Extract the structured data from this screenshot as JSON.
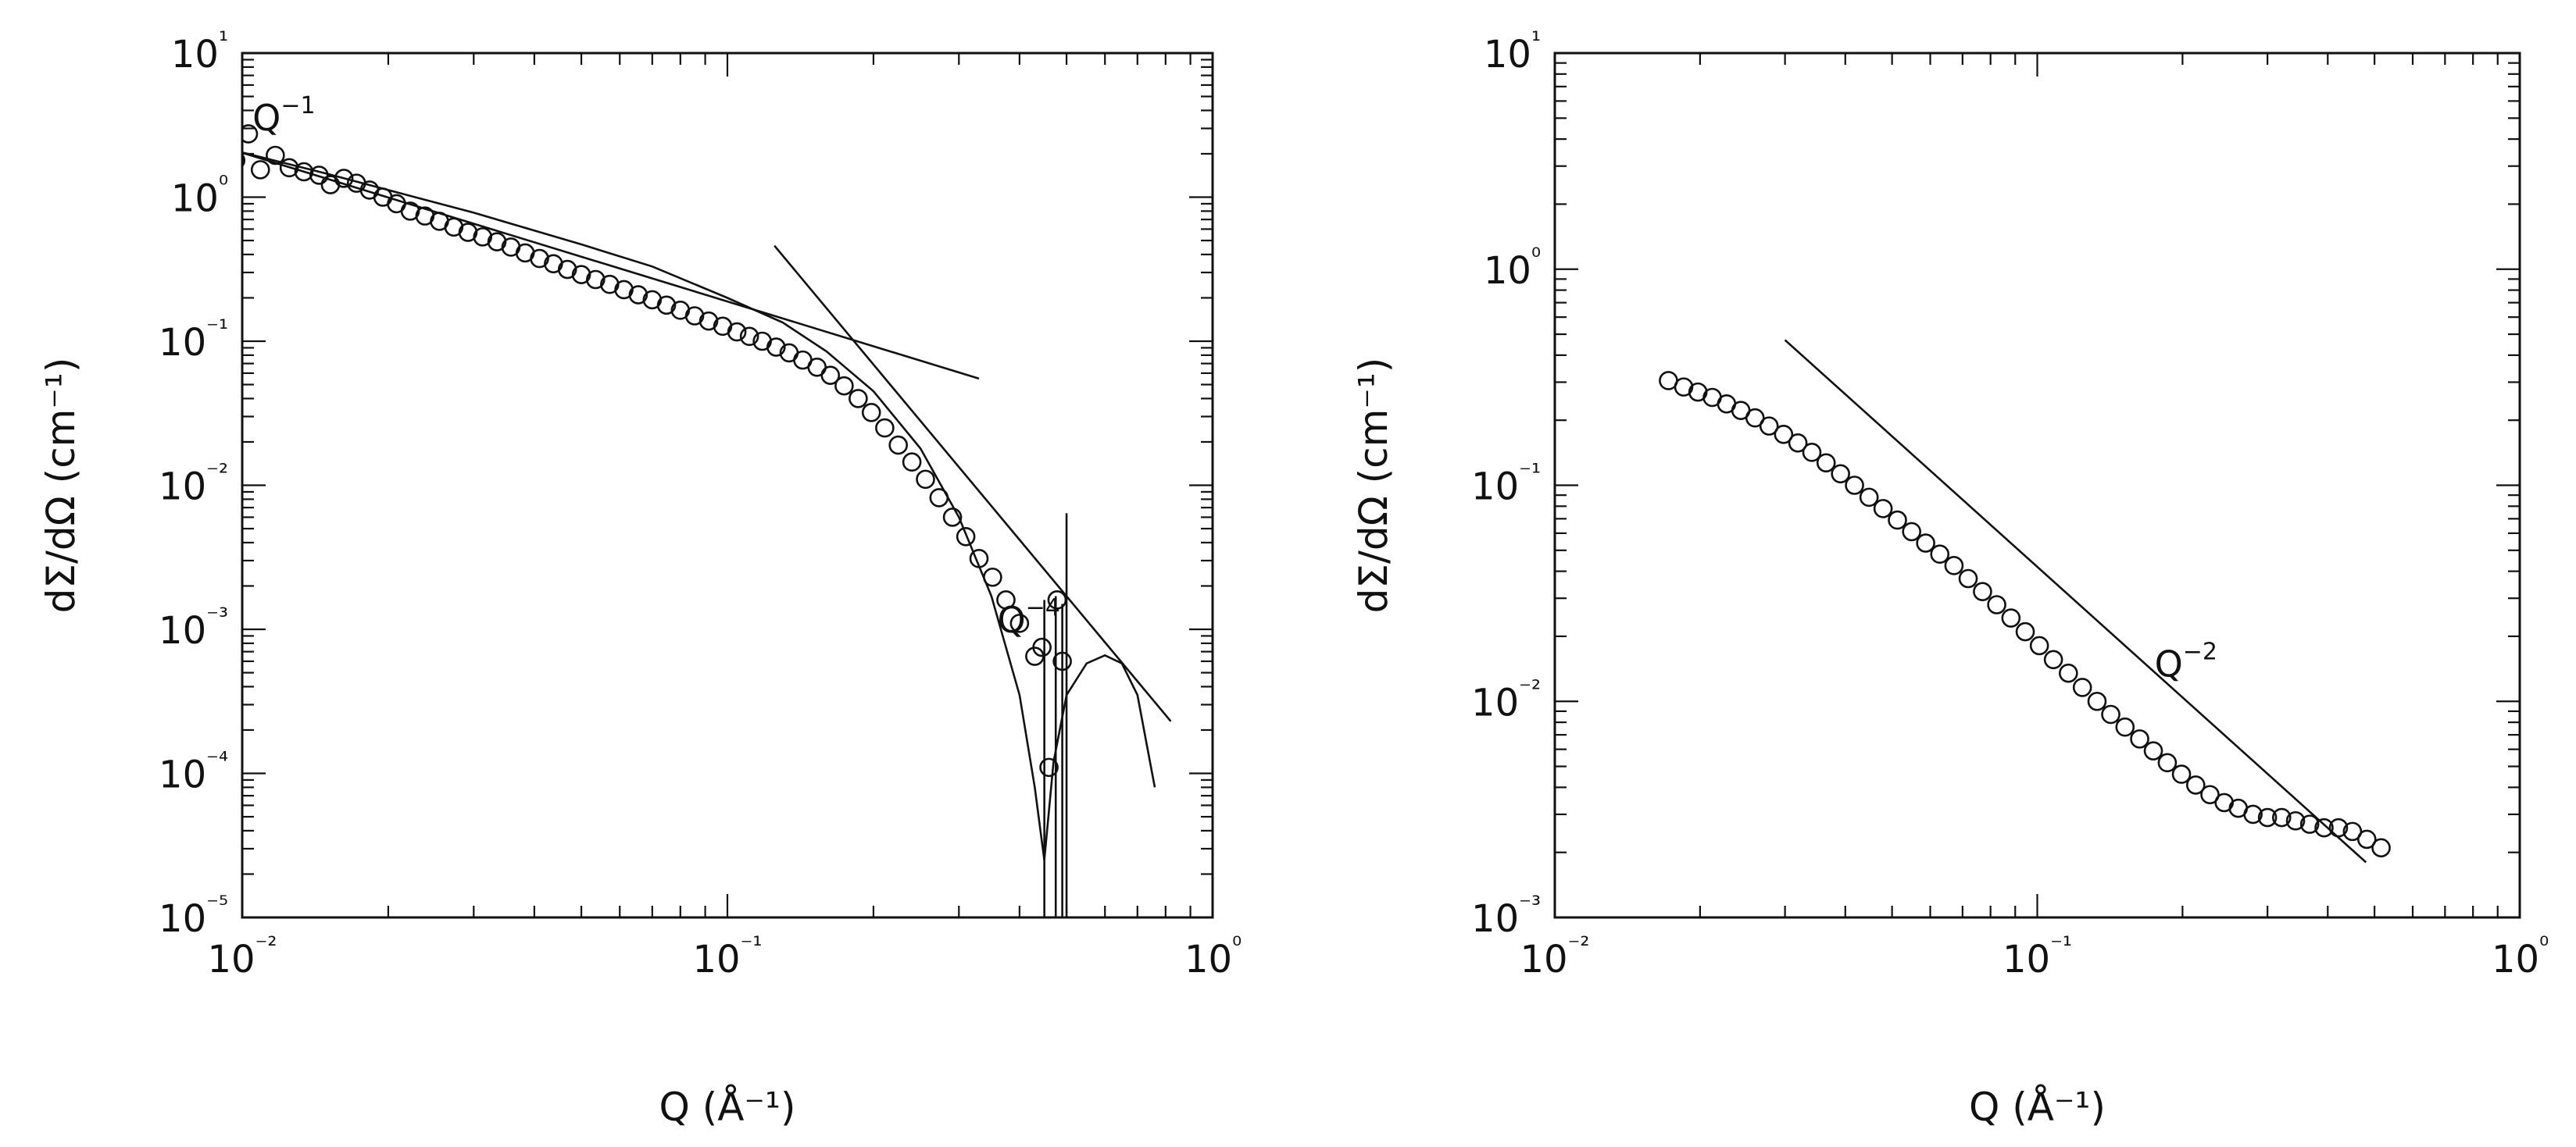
{
  "chart_data": [
    {
      "type": "scatter",
      "xscale": "log",
      "yscale": "log",
      "xlim": [
        0.01,
        1
      ],
      "ylim": [
        1e-05,
        10
      ],
      "xlabel": "Q (Å⁻¹)",
      "ylabel": "dΣ/dΩ (cm⁻¹)",
      "x_ticks": [
        0.01,
        0.1,
        1
      ],
      "y_ticks": [
        1e-05,
        0.0001,
        0.001,
        0.01,
        0.1,
        1,
        10
      ],
      "grid": false,
      "annotations": [
        {
          "base": "Q",
          "exp": "−1",
          "x": 0.0105,
          "y": 2.9
        },
        {
          "base": "Q",
          "exp": "−4",
          "x": 0.36,
          "y": 0.00095
        }
      ],
      "series": [
        {
          "marker": "circle",
          "x": [
            0.0097,
            0.0103,
            0.0109,
            0.0117,
            0.0125,
            0.0134,
            0.0144,
            0.0152,
            0.0162,
            0.0172,
            0.0183,
            0.0195,
            0.0208,
            0.0222,
            0.0238,
            0.0255,
            0.0273,
            0.0292,
            0.0313,
            0.0335,
            0.0358,
            0.0383,
            0.041,
            0.0438,
            0.0468,
            0.05,
            0.0535,
            0.0572,
            0.0612,
            0.0655,
            0.07,
            0.0749,
            0.08,
            0.0856,
            0.0915,
            0.0978,
            0.1046,
            0.111,
            0.118,
            0.126,
            0.134,
            0.143,
            0.153,
            0.163,
            0.174,
            0.186,
            0.198,
            0.211,
            0.225,
            0.24,
            0.256,
            0.273,
            0.291,
            0.31,
            0.33,
            0.352,
            0.375,
            0.4,
            0.43,
            0.445,
            0.46,
            0.478,
            0.49
          ],
          "y": [
            1.8,
            2.75,
            1.55,
            1.95,
            1.6,
            1.5,
            1.42,
            1.22,
            1.35,
            1.25,
            1.12,
            1.0,
            0.9,
            0.8,
            0.74,
            0.68,
            0.62,
            0.57,
            0.53,
            0.49,
            0.45,
            0.41,
            0.375,
            0.345,
            0.315,
            0.29,
            0.268,
            0.248,
            0.228,
            0.21,
            0.194,
            0.178,
            0.164,
            0.15,
            0.138,
            0.127,
            0.116,
            0.108,
            0.1,
            0.091,
            0.083,
            0.074,
            0.066,
            0.058,
            0.049,
            0.04,
            0.032,
            0.025,
            0.019,
            0.0145,
            0.011,
            0.0082,
            0.006,
            0.0044,
            0.0031,
            0.0023,
            0.0016,
            0.0011,
            0.00065,
            0.00075,
            0.00011,
            0.0016,
            0.0006
          ]
        },
        {
          "name": "",
          "style": "line",
          "x": [
            0.0097,
            0.33
          ],
          "y": [
            2.1,
            0.055
          ]
        },
        {
          "name": "",
          "style": "line",
          "x": [
            0.125,
            0.82
          ],
          "y": [
            0.46,
            0.00023
          ]
        },
        {
          "name": "",
          "style": "line",
          "x": [
            0.0097,
            0.015,
            0.02,
            0.03,
            0.05,
            0.07,
            0.1,
            0.13,
            0.16,
            0.2,
            0.25,
            0.3,
            0.35,
            0.4,
            0.43,
            0.45,
            0.47,
            0.5,
            0.55,
            0.6,
            0.65,
            0.7,
            0.76
          ],
          "y": [
            2.1,
            1.45,
            1.12,
            0.78,
            0.47,
            0.33,
            0.2,
            0.135,
            0.085,
            0.045,
            0.018,
            0.006,
            0.0017,
            0.00035,
            8e-05,
            2.5e-05,
            0.00012,
            0.00035,
            0.00058,
            0.00066,
            0.00058,
            0.00035,
            8e-05
          ]
        },
        {
          "name": "",
          "style": "error-bars",
          "x": [
            0.45,
            0.475,
            0.49,
            0.5
          ],
          "y_low": [
            1e-05,
            1e-05,
            1e-05,
            1e-05
          ],
          "y_high": [
            0.0016,
            0.0017,
            0.0015,
            0.0064
          ]
        }
      ]
    },
    {
      "type": "scatter",
      "xscale": "log",
      "yscale": "log",
      "xlim": [
        0.01,
        1
      ],
      "ylim": [
        0.001,
        10
      ],
      "xlabel": "Q (Å⁻¹)",
      "ylabel": "dΣ/dΩ (cm⁻¹)",
      "x_ticks": [
        0.01,
        0.1,
        1
      ],
      "y_ticks": [
        0.001,
        0.01,
        0.1,
        1,
        10
      ],
      "grid": false,
      "annotations": [
        {
          "base": "Q",
          "exp": "−2",
          "x": 0.175,
          "y": 0.013
        }
      ],
      "series": [
        {
          "marker": "circle",
          "x": [
            0.0172,
            0.0185,
            0.0198,
            0.0212,
            0.0227,
            0.0243,
            0.026,
            0.0278,
            0.0298,
            0.0319,
            0.0341,
            0.0365,
            0.0391,
            0.0418,
            0.0448,
            0.0479,
            0.0513,
            0.0549,
            0.0587,
            0.0628,
            0.0672,
            0.0719,
            0.077,
            0.0824,
            0.0882,
            0.0944,
            0.101,
            0.108,
            0.116,
            0.124,
            0.133,
            0.142,
            0.152,
            0.163,
            0.174,
            0.186,
            0.199,
            0.213,
            0.228,
            0.244,
            0.261,
            0.28,
            0.3,
            0.321,
            0.343,
            0.367,
            0.393,
            0.421,
            0.45,
            0.482,
            0.516
          ],
          "y": [
            0.305,
            0.285,
            0.27,
            0.255,
            0.238,
            0.222,
            0.205,
            0.188,
            0.172,
            0.157,
            0.142,
            0.127,
            0.113,
            0.1,
            0.088,
            0.078,
            0.069,
            0.061,
            0.054,
            0.048,
            0.0425,
            0.037,
            0.0322,
            0.028,
            0.0243,
            0.021,
            0.0181,
            0.0156,
            0.0135,
            0.0116,
            0.01,
            0.0087,
            0.0076,
            0.0067,
            0.0059,
            0.0052,
            0.0046,
            0.0041,
            0.0037,
            0.0034,
            0.0032,
            0.003,
            0.0029,
            0.0029,
            0.0028,
            0.0027,
            0.0026,
            0.0026,
            0.0025,
            0.0023,
            0.0021
          ]
        },
        {
          "name": "",
          "style": "line",
          "x": [
            0.03,
            0.48
          ],
          "y": [
            0.47,
            0.0018
          ]
        }
      ]
    }
  ]
}
